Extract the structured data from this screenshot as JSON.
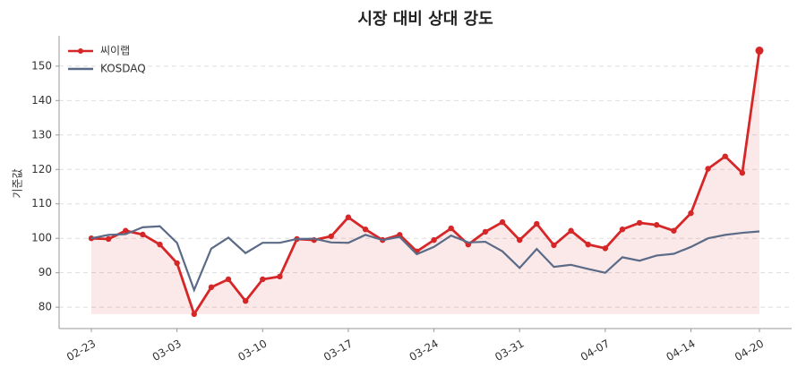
{
  "chart_data": {
    "type": "line",
    "title": "시장 대비 상대 강도",
    "y_label": "기준값",
    "categories": [
      "02-23",
      null,
      null,
      null,
      null,
      "03-03",
      null,
      null,
      null,
      null,
      "03-10",
      null,
      null,
      null,
      null,
      "03-17",
      null,
      null,
      null,
      null,
      "03-24",
      null,
      null,
      null,
      null,
      "03-31",
      null,
      null,
      null,
      null,
      "04-07",
      null,
      null,
      null,
      null,
      "04-14",
      null,
      null,
      null,
      "04-20"
    ],
    "series": [
      {
        "name": "씨이랩",
        "color": "#d62728",
        "values": [
          100,
          99.8,
          102.2,
          101.1,
          98.2,
          92.8,
          78,
          85.8,
          88.1,
          81.8,
          88.1,
          88.9,
          99.8,
          99.5,
          100.6,
          106.1,
          102.6,
          99.5,
          101,
          96.2,
          99.5,
          102.9,
          98.2,
          101.9,
          104.7,
          99.5,
          104.2,
          98,
          102.2,
          98.2,
          97.1,
          102.6,
          104.5,
          103.9,
          102.2,
          107.3,
          120.2,
          123.8,
          119,
          154.5
        ]
      },
      {
        "name": "KOSDAQ",
        "color": "#5b6b87",
        "values": [
          100,
          101,
          101.2,
          103.2,
          103.5,
          98.7,
          85,
          97,
          100.2,
          95.7,
          98.7,
          98.7,
          99.8,
          99.9,
          98.8,
          98.7,
          101,
          99.5,
          100.4,
          95.4,
          97.5,
          100.8,
          98.8,
          99,
          96.2,
          91.4,
          96.9,
          91.7,
          92.3,
          91.1,
          90,
          94.5,
          93.5,
          95,
          95.5,
          97.5,
          100,
          101,
          101.6,
          102
        ]
      }
    ],
    "ylim": [
      73.8,
      158.8
    ],
    "yticks": [
      80,
      90,
      100,
      110,
      120,
      130,
      140,
      150
    ],
    "grid": true,
    "legend": "upper left"
  }
}
